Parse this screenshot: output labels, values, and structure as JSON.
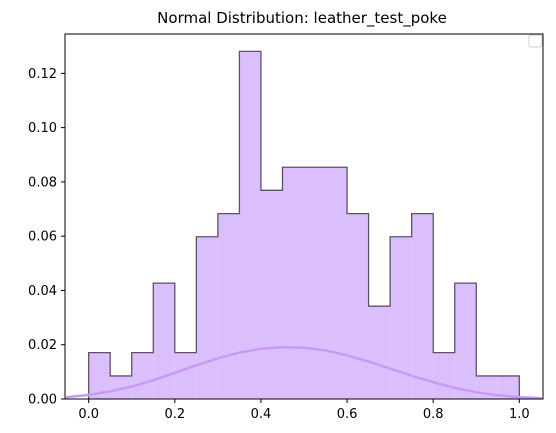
{
  "chart_data": {
    "type": "bar",
    "title": "Normal Distribution: leather_test_poke",
    "xlabel": "",
    "ylabel": "",
    "xlim": [
      -0.055,
      1.055
    ],
    "ylim": [
      0,
      0.1345
    ],
    "x_ticks": [
      0.0,
      0.2,
      0.4,
      0.6,
      0.8,
      1.0
    ],
    "x_tick_labels": [
      "0.0",
      "0.2",
      "0.4",
      "0.6",
      "0.8",
      "1.0"
    ],
    "y_ticks": [
      0.0,
      0.02,
      0.04,
      0.06,
      0.08,
      0.1,
      0.12
    ],
    "y_tick_labels": [
      "0.00",
      "0.02",
      "0.04",
      "0.06",
      "0.08",
      "0.10",
      "0.12"
    ],
    "grid": false,
    "legend": "top-right (empty)",
    "histogram": {
      "bin_edges": [
        0.0,
        0.05,
        0.1,
        0.15,
        0.2,
        0.25,
        0.3,
        0.35,
        0.4,
        0.45,
        0.5,
        0.55,
        0.6,
        0.65,
        0.7,
        0.75,
        0.8,
        0.85,
        0.9,
        0.95,
        1.0
      ],
      "values": [
        0.0171,
        0.0085,
        0.0171,
        0.0427,
        0.0171,
        0.0598,
        0.0683,
        0.1281,
        0.0769,
        0.0854,
        0.0854,
        0.0854,
        0.0683,
        0.0342,
        0.0598,
        0.0683,
        0.0171,
        0.0427,
        0.0085,
        0.0085
      ],
      "fill_color": "#dbbffc",
      "edge_color": "#5e5268"
    },
    "curve": {
      "type": "line",
      "color": "#c79af7",
      "x": [
        -0.05,
        0.0,
        0.05,
        0.1,
        0.15,
        0.2,
        0.25,
        0.3,
        0.35,
        0.4,
        0.45,
        0.5,
        0.55,
        0.6,
        0.65,
        0.7,
        0.75,
        0.8,
        0.85,
        0.9,
        0.95,
        1.0,
        1.05
      ],
      "y": [
        0.0007,
        0.0015,
        0.0028,
        0.0046,
        0.0069,
        0.0096,
        0.0124,
        0.015,
        0.0171,
        0.0185,
        0.0191,
        0.0189,
        0.0179,
        0.0161,
        0.0138,
        0.0112,
        0.0086,
        0.0062,
        0.0041,
        0.0025,
        0.0014,
        0.0007,
        0.0003
      ]
    }
  }
}
